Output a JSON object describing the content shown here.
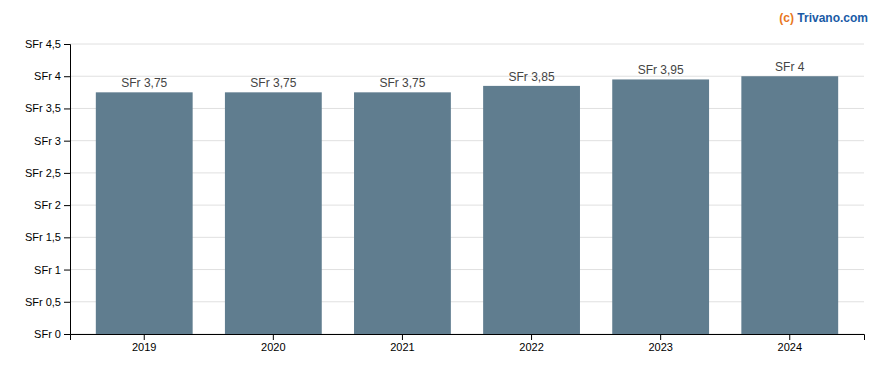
{
  "chart_data": {
    "type": "bar",
    "categories": [
      "2019",
      "2020",
      "2021",
      "2022",
      "2023",
      "2024"
    ],
    "values": [
      3.75,
      3.75,
      3.75,
      3.85,
      3.95,
      4.0
    ],
    "value_labels": [
      "SFr 3,75",
      "SFr 3,75",
      "SFr 3,75",
      "SFr 3,85",
      "SFr 3,95",
      "SFr 4"
    ],
    "data_labels": true,
    "color": "#607d8f",
    "ylim": [
      0,
      4.5
    ],
    "yticks": [
      {
        "value": 0,
        "label": "SFr 0"
      },
      {
        "value": 0.5,
        "label": "SFr 0,5"
      },
      {
        "value": 1.0,
        "label": "SFr 1"
      },
      {
        "value": 1.5,
        "label": "SFr 1,5"
      },
      {
        "value": 2.0,
        "label": "SFr 2"
      },
      {
        "value": 2.5,
        "label": "SFr 2,5"
      },
      {
        "value": 3.0,
        "label": "SFr 3"
      },
      {
        "value": 3.5,
        "label": "SFr 3,5"
      },
      {
        "value": 4.0,
        "label": "SFr 4"
      },
      {
        "value": 4.5,
        "label": "SFr 4,5"
      }
    ],
    "grid": true,
    "annotations": [
      {
        "text": "(c) ",
        "color": "#e87722"
      },
      {
        "text": "Trivano.com",
        "color": "#1a5ba6"
      }
    ]
  }
}
